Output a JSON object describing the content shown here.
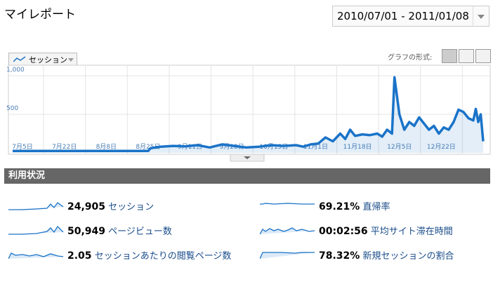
{
  "header": {
    "title": "マイレポート",
    "date_range": "2010/07/01 - 2011/01/08"
  },
  "tab": "セッション",
  "graph_type_label": "グラフの形式:",
  "chart_data": {
    "type": "line",
    "color": "#1a73c8",
    "x": [
      0,
      10,
      20,
      30,
      40,
      50,
      55,
      56,
      60,
      65,
      70,
      75,
      80,
      85,
      90,
      95,
      100,
      105,
      110,
      115,
      118,
      121,
      124,
      127,
      130,
      133,
      135,
      137,
      139,
      142,
      145,
      148,
      150,
      152,
      154,
      155,
      157,
      159,
      161,
      163,
      165,
      167,
      169,
      171,
      173,
      175,
      177,
      179,
      181,
      183,
      185,
      187,
      188,
      189,
      190,
      191
    ],
    "series": [
      {
        "name": "セッション",
        "color": "#1a73c8",
        "values": [
          25,
          25,
          25,
          25,
          25,
          25,
          25,
          60,
          80,
          90,
          85,
          100,
          70,
          110,
          90,
          70,
          80,
          100,
          90,
          100,
          80,
          110,
          120,
          200,
          150,
          250,
          180,
          300,
          220,
          240,
          230,
          250,
          210,
          300,
          250,
          980,
          500,
          300,
          400,
          350,
          460,
          380,
          300,
          350,
          250,
          330,
          300,
          400,
          560,
          530,
          450,
          420,
          570,
          400,
          500,
          150
        ]
      }
    ],
    "xlim": [
      0,
      191
    ],
    "ylim": [
      0,
      1100
    ],
    "xticks": [
      {
        "value": 4,
        "label": "7月5日"
      },
      {
        "value": 21,
        "label": "7月22日"
      },
      {
        "value": 38,
        "label": "8月8日"
      },
      {
        "value": 55,
        "label": "8月25日"
      },
      {
        "value": 72,
        "label": "9月11日"
      },
      {
        "value": 89,
        "label": "9月28日"
      },
      {
        "value": 106,
        "label": "10月15日"
      },
      {
        "value": 123,
        "label": "11月1日"
      },
      {
        "value": 140,
        "label": "11月18日"
      },
      {
        "value": 157,
        "label": "12月5日"
      },
      {
        "value": 174,
        "label": "12月22日"
      }
    ],
    "yticks": [
      500,
      {
        "value": 1000,
        "label": "1,000"
      }
    ],
    "grid": true
  },
  "section_title": "利用状況",
  "metrics": [
    {
      "value": "24,905",
      "label": "セッション"
    },
    {
      "value": "69.21%",
      "label": "直帰率"
    },
    {
      "value": "50,949",
      "label": "ページビュー数"
    },
    {
      "value": "00:02:56",
      "label": "平均サイト滞在時間"
    },
    {
      "value": "2.05",
      "label": "セッションあたりの閲覧ページ数"
    },
    {
      "value": "78.32%",
      "label": "新規セッションの割合"
    }
  ]
}
